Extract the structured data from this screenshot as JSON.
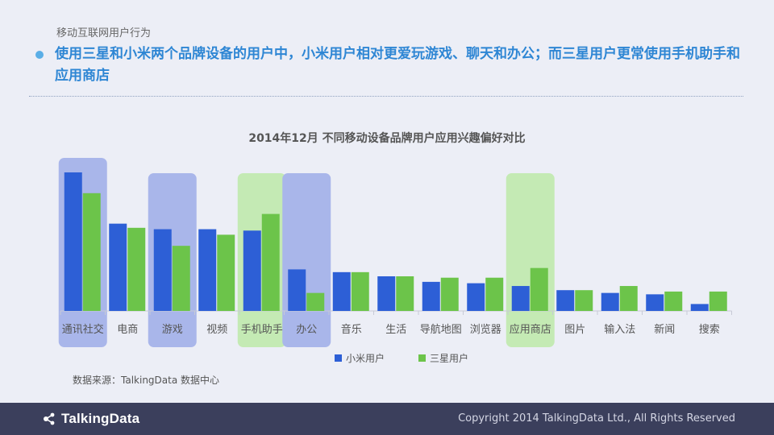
{
  "header": {
    "section_label": "移动互联网用户行为",
    "headline": "使用三星和小米两个品牌设备的用户中，小米用户相对更爱玩游戏、聊天和办公；而三星用户更常使用手机助手和应用商店"
  },
  "footer": {
    "source": "数据来源：TalkingData 数据中心",
    "logo_text": "TalkingData",
    "copyright": "Copyright 2014 TalkingData Ltd., All Rights Reserved"
  },
  "colors": {
    "xiaomi": "#2d5fd6",
    "samsung": "#6cc44a",
    "highlight_blue": "#a9b6ea",
    "highlight_green": "#c4eab4",
    "headline": "#2e86d4"
  },
  "chart_data": {
    "type": "bar",
    "title": "2014年12月 不同移动设备品牌用户应用兴趣偏好对比",
    "categories": [
      "通讯社交",
      "电商",
      "游戏",
      "视频",
      "手机助手",
      "办公",
      "音乐",
      "生活",
      "导航地图",
      "浏览器",
      "应用商店",
      "图片",
      "输入法",
      "新闻",
      "搜索"
    ],
    "series": [
      {
        "name": "小米用户",
        "values": [
          100,
          63,
          59,
          59,
          58,
          30,
          28,
          25,
          21,
          20,
          18,
          15,
          13,
          12,
          5
        ]
      },
      {
        "name": "三星用户",
        "values": [
          85,
          60,
          47,
          55,
          70,
          13,
          28,
          25,
          24,
          24,
          31,
          15,
          18,
          14,
          14
        ]
      }
    ],
    "highlights": [
      {
        "category": "通讯社交",
        "color": "blue"
      },
      {
        "category": "游戏",
        "color": "blue"
      },
      {
        "category": "手机助手",
        "color": "green"
      },
      {
        "category": "办公",
        "color": "blue"
      },
      {
        "category": "应用商店",
        "color": "green"
      }
    ],
    "ylim": [
      0,
      100
    ],
    "xlabel": "",
    "ylabel": "",
    "grid": false,
    "legend": "bottom-center"
  }
}
